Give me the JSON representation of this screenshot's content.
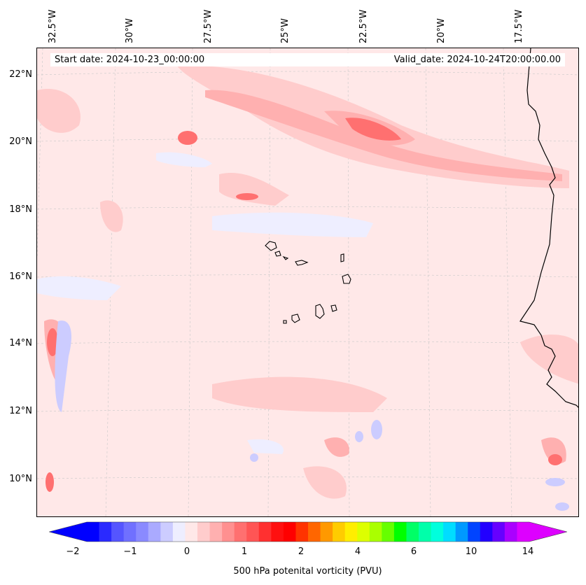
{
  "map": {
    "start_date_label": "Start date: 2024-10-23_00:00:00",
    "valid_date_label": "Valid_date: 2024-10-24T20:00:00.00",
    "longitude_labels": [
      "32.5°W",
      "30°W",
      "27.5°W",
      "25°W",
      "22.5°W",
      "20°W",
      "17.5°W"
    ],
    "latitude_labels": [
      "22°N",
      "20°N",
      "18°N",
      "16°N",
      "14°N",
      "12°N",
      "10°N"
    ],
    "background_color": "#ffe8e8",
    "coastline_color": "#000000"
  },
  "colorbar": {
    "title": "500 hPa potenital vorticity (PVU)",
    "tick_labels": [
      "−2",
      "−1",
      "0",
      "1",
      "2",
      "4",
      "6",
      "10",
      "14"
    ],
    "colors": [
      "#0000ff",
      "#2a2aff",
      "#5555ff",
      "#7070ff",
      "#8a8aff",
      "#aaaaff",
      "#ccccff",
      "#eeeeff",
      "#ffe8e8",
      "#ffcccc",
      "#ffb0b0",
      "#ff9090",
      "#ff7070",
      "#ff5555",
      "#ff3030",
      "#ff1010",
      "#ff0000",
      "#ff3300",
      "#ff6600",
      "#ff9900",
      "#ffcc00",
      "#ffee00",
      "#ddff00",
      "#aaff00",
      "#66ff00",
      "#00ff00",
      "#00ff66",
      "#00ffaa",
      "#00ffdd",
      "#00ddff",
      "#0099ff",
      "#0044ff",
      "#2200ff",
      "#6600ff",
      "#aa00ff",
      "#dd00ff"
    ]
  }
}
